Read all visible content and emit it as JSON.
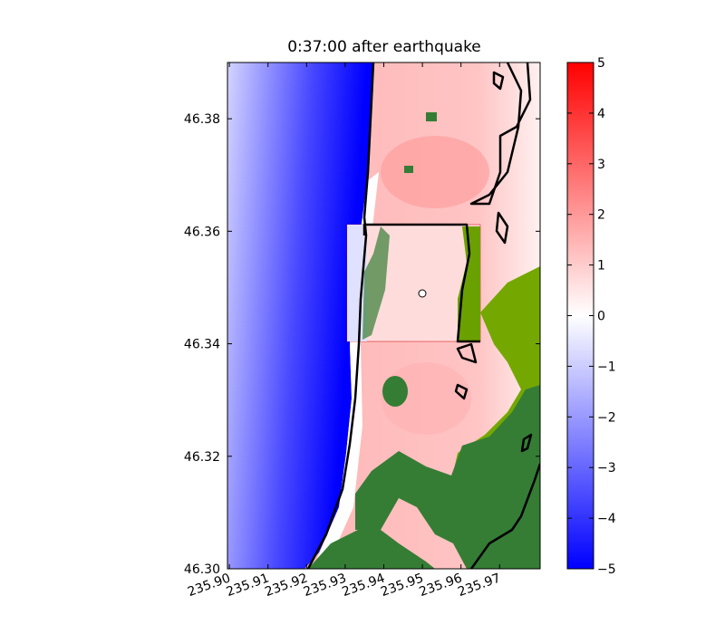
{
  "chart_data": {
    "type": "heatmap",
    "title": "0:37:00 after earthquake",
    "xlim": [
      235.8995,
      235.9805
    ],
    "ylim": [
      46.3,
      46.39
    ],
    "xticks": [
      {
        "value": 235.9,
        "label": "235.90"
      },
      235.91,
      235.92,
      235.93,
      235.94,
      235.95,
      235.96,
      235.97
    ],
    "yticks": [
      {
        "value": 46.3,
        "label": "46.30"
      },
      46.32,
      46.34,
      46.36,
      46.38
    ],
    "colorbar": {
      "lim": [
        -5,
        5
      ],
      "ticks": [
        {
          "value": -5,
          "label": "−5"
        },
        {
          "value": -4,
          "label": "−4"
        },
        {
          "value": -3,
          "label": "−3"
        },
        {
          "value": -2,
          "label": "−2"
        },
        {
          "value": -1,
          "label": "−1"
        },
        0,
        1,
        2,
        3,
        4,
        5
      ],
      "colors": [
        "#0000ff",
        "#ffffff",
        "#ff0000"
      ]
    }
  }
}
